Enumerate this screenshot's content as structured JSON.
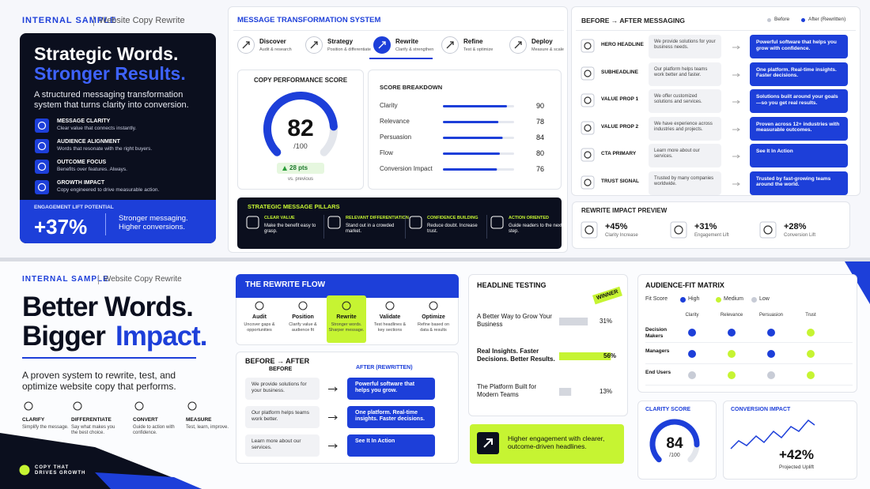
{
  "top": {
    "header": {
      "label": "INTERNAL SAMPLE",
      "sub": "Website Copy Rewrite"
    },
    "hero": {
      "title_1": "Strategic Words.",
      "title_2": "Stronger Results.",
      "description": "A structured messaging transformation system that turns clarity into conversion.",
      "features": [
        {
          "title": "MESSAGE CLARITY",
          "text": "Clear value that connects instantly."
        },
        {
          "title": "AUDIENCE ALIGNMENT",
          "text": "Words that resonate with the right buyers."
        },
        {
          "title": "OUTCOME FOCUS",
          "text": "Benefits over features. Always."
        },
        {
          "title": "GROWTH IMPACT",
          "text": "Copy engineered to drive measurable action."
        }
      ],
      "lift": {
        "label": "ENGAGEMENT LIFT POTENTIAL",
        "value": "+37%",
        "text": "Stronger messaging. Higher conversions."
      }
    },
    "system": {
      "title": "MESSAGE TRANSFORMATION SYSTEM",
      "steps": [
        {
          "title": "Discover",
          "text": "Audit & research"
        },
        {
          "title": "Strategy",
          "text": "Position & differentiate"
        },
        {
          "title": "Rewrite",
          "text": "Clarify & strengthen",
          "active": true
        },
        {
          "title": "Refine",
          "text": "Test & optimize"
        },
        {
          "title": "Deploy",
          "text": "Measure & scale"
        }
      ]
    },
    "score": {
      "title": "COPY PERFORMANCE SCORE",
      "value": 82,
      "max": {
        "value": 100,
        "label": "/100"
      },
      "change": "28 pts",
      "change_note": "vs. previous"
    },
    "breakdown": {
      "title": "SCORE BREAKDOWN",
      "xlim": [
        0,
        100
      ],
      "categories": [
        "Clarity",
        "Relevance",
        "Persuasion",
        "Flow",
        "Conversion Impact"
      ],
      "values": [
        90,
        78,
        84,
        80,
        76
      ]
    },
    "pillars": {
      "title": "STRATEGIC MESSAGE PILLARS",
      "items": [
        {
          "title": "CLEAR VALUE",
          "text": "Make the benefit easy to grasp."
        },
        {
          "title": "RELEVANT DIFFERENTIATION",
          "text": "Stand out in a crowded market."
        },
        {
          "title": "CONFIDENCE BUILDING",
          "text": "Reduce doubt. Increase trust."
        },
        {
          "title": "ACTION ORIENTED",
          "text": "Guide readers to the next step."
        }
      ]
    },
    "messaging": {
      "title": "BEFORE → AFTER MESSAGING",
      "legend": [
        {
          "name": "Before",
          "color": "#c4c8d2"
        },
        {
          "name": "After (Rewritten)",
          "color": "#1d3fd9"
        }
      ],
      "rows": [
        {
          "label": "HERO HEADLINE",
          "before": "We provide solutions for your business needs.",
          "after": "Powerful software that helps you grow with confidence."
        },
        {
          "label": "SUBHEADLINE",
          "before": "Our platform helps teams work better and faster.",
          "after": "One platform. Real-time insights. Faster decisions."
        },
        {
          "label": "VALUE PROP 1",
          "before": "We offer customized solutions and services.",
          "after": "Solutions built around your goals—so you get real results."
        },
        {
          "label": "VALUE PROP 2",
          "before": "We have experience across industries and projects.",
          "after": "Proven across 12+ industries with measurable outcomes."
        },
        {
          "label": "CTA PRIMARY",
          "before": "Learn more about our services.",
          "after": "See It In Action"
        },
        {
          "label": "TRUST SIGNAL",
          "before": "Trusted by many companies worldwide.",
          "after": "Trusted by fast-growing teams around the world."
        }
      ]
    },
    "impact": {
      "title": "REWRITE IMPACT PREVIEW",
      "items": [
        {
          "value": "+45%",
          "label": "Clarity Increase"
        },
        {
          "value": "+31%",
          "label": "Engagement Lift"
        },
        {
          "value": "+28%",
          "label": "Conversion Lift"
        }
      ]
    }
  },
  "bottom": {
    "header": {
      "label": "INTERNAL SAMPLE",
      "sub": "Website Copy Rewrite"
    },
    "hero": {
      "title_1": "Better Words.",
      "title_2a": "Bigger",
      "title_2b": "Impact.",
      "description": "A proven system to rewrite, test, and optimize website copy that performs.",
      "items": [
        {
          "title": "CLARIFY",
          "text": "Simplify the message."
        },
        {
          "title": "DIFFERENTIATE",
          "text": "Say what makes you the best choice."
        },
        {
          "title": "CONVERT",
          "text": "Guide to action with confidence."
        },
        {
          "title": "MEASURE",
          "text": "Test, learn, improve."
        }
      ],
      "badge": "COPY THAT DRIVES GROWTH"
    },
    "flow": {
      "title": "THE REWRITE FLOW",
      "steps": [
        {
          "title": "Audit",
          "text": "Uncover gaps & opportunities"
        },
        {
          "title": "Position",
          "text": "Clarify value & audience fit"
        },
        {
          "title": "Rewrite",
          "text": "Stronger words. Sharper message.",
          "active": true
        },
        {
          "title": "Validate",
          "text": "Test headlines & key sections"
        },
        {
          "title": "Optimize",
          "text": "Refine based on data & results"
        }
      ]
    },
    "before_after": {
      "title": "BEFORE → AFTER",
      "before_label": "BEFORE",
      "after_label": "AFTER (REWRITTEN)",
      "rows": [
        {
          "before": "We provide solutions for your business.",
          "after": "Powerful software that helps you grow."
        },
        {
          "before": "Our platform helps teams work better.",
          "after": "One platform. Real-time insights. Faster decisions."
        },
        {
          "before": "Learn more about our services.",
          "after": "See It In Action"
        }
      ]
    },
    "headline_testing": {
      "title": "HEADLINE TESTING",
      "badge": "WINNER",
      "xlim": [
        0,
        60
      ],
      "categories": [
        "A Better Way to Grow Your Business",
        "Real Insights. Faster Decisions. Better Results.",
        "The Platform Built for Modern Teams"
      ],
      "values": [
        31,
        56,
        13
      ],
      "value_labels": [
        "31%",
        "56%",
        "13%"
      ],
      "colors": [
        "#d4d7de",
        "#c6f432",
        "#d4d7de"
      ],
      "callout": "Higher engagement with clearer, outcome-driven headlines."
    },
    "matrix": {
      "title": "AUDIENCE-FIT MATRIX",
      "legend_title": "Fit Score",
      "levels": [
        {
          "name": "High",
          "color": "#1d3fd9"
        },
        {
          "name": "Medium",
          "color": "#c6f432"
        },
        {
          "name": "Low",
          "color": "#c8ccd6"
        }
      ],
      "columns": [
        "Clarity",
        "Relevance",
        "Persuasion",
        "Trust"
      ],
      "rows": [
        {
          "label": "Decision Makers",
          "values": [
            "High",
            "High",
            "High",
            "Medium"
          ]
        },
        {
          "label": "Managers",
          "values": [
            "High",
            "Medium",
            "High",
            "Medium"
          ]
        },
        {
          "label": "End Users",
          "values": [
            "Low",
            "Medium",
            "Low",
            "Medium"
          ]
        }
      ]
    },
    "clarity": {
      "title": "CLARITY SCORE",
      "value": 84,
      "max": {
        "value": 100,
        "label": "/100"
      }
    },
    "conversion": {
      "title": "CONVERSION IMPACT",
      "value": "+42%",
      "label": "Projected Uplift"
    }
  }
}
